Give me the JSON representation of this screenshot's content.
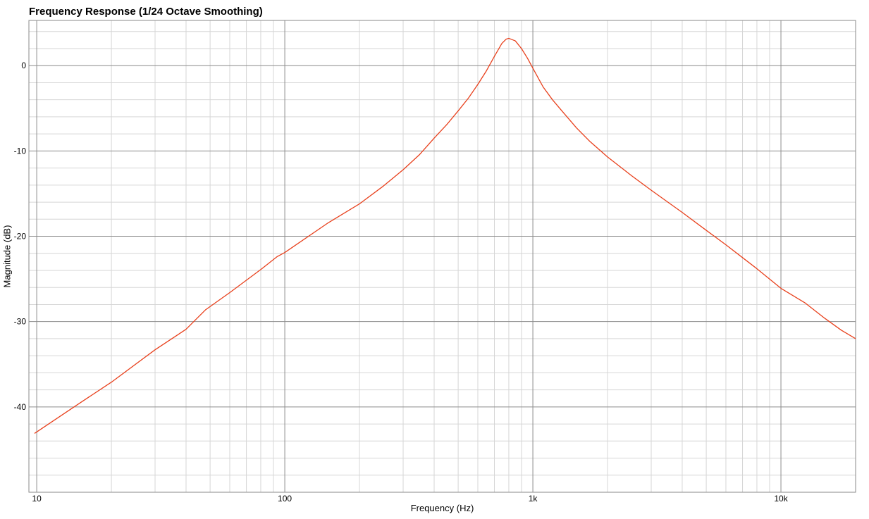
{
  "chart_data": {
    "type": "line",
    "title": "Frequency Response (1/24 Octave Smoothing)",
    "xlabel": "Frequency (Hz)",
    "ylabel": "Magnitude (dB)",
    "x_scale": "log",
    "xlim": [
      9.3,
      20000
    ],
    "ylim": [
      -50,
      5.3
    ],
    "grid": true,
    "x_ticks": [
      {
        "value": 10,
        "label": "10"
      },
      {
        "value": 100,
        "label": "100"
      },
      {
        "value": 1000,
        "label": "1k"
      },
      {
        "value": 10000,
        "label": "10k"
      }
    ],
    "y_ticks": [
      {
        "value": 0,
        "label": "0"
      },
      {
        "value": -10,
        "label": "-10"
      },
      {
        "value": -20,
        "label": "-20"
      },
      {
        "value": -30,
        "label": "-30"
      },
      {
        "value": -40,
        "label": "-40"
      }
    ],
    "series": [
      {
        "color": "#e8401c",
        "points": [
          [
            9.8,
            -43.1
          ],
          [
            15,
            -39.5
          ],
          [
            20,
            -37.1
          ],
          [
            30,
            -33.3
          ],
          [
            40,
            -30.9
          ],
          [
            48,
            -28.6
          ],
          [
            60,
            -26.6
          ],
          [
            80,
            -23.9
          ],
          [
            93,
            -22.4
          ],
          [
            100,
            -21.9
          ],
          [
            150,
            -18.4
          ],
          [
            200,
            -16.2
          ],
          [
            250,
            -14.1
          ],
          [
            300,
            -12.2
          ],
          [
            350,
            -10.4
          ],
          [
            400,
            -8.5
          ],
          [
            450,
            -6.9
          ],
          [
            500,
            -5.3
          ],
          [
            550,
            -3.8
          ],
          [
            600,
            -2.2
          ],
          [
            650,
            -0.6
          ],
          [
            700,
            1.1
          ],
          [
            750,
            2.6
          ],
          [
            780,
            3.1
          ],
          [
            800,
            3.2
          ],
          [
            850,
            2.9
          ],
          [
            900,
            2.0
          ],
          [
            950,
            0.9
          ],
          [
            1000,
            -0.3
          ],
          [
            1100,
            -2.5
          ],
          [
            1200,
            -4.0
          ],
          [
            1300,
            -5.2
          ],
          [
            1500,
            -7.3
          ],
          [
            1700,
            -8.9
          ],
          [
            2000,
            -10.7
          ],
          [
            2500,
            -12.9
          ],
          [
            3000,
            -14.6
          ],
          [
            4000,
            -17.2
          ],
          [
            5000,
            -19.3
          ],
          [
            6000,
            -21.0
          ],
          [
            7000,
            -22.5
          ],
          [
            8000,
            -23.8
          ],
          [
            10000,
            -26.1
          ],
          [
            12500,
            -27.8
          ],
          [
            15000,
            -29.6
          ],
          [
            17500,
            -31.0
          ],
          [
            20000,
            -32.0
          ]
        ]
      }
    ]
  }
}
